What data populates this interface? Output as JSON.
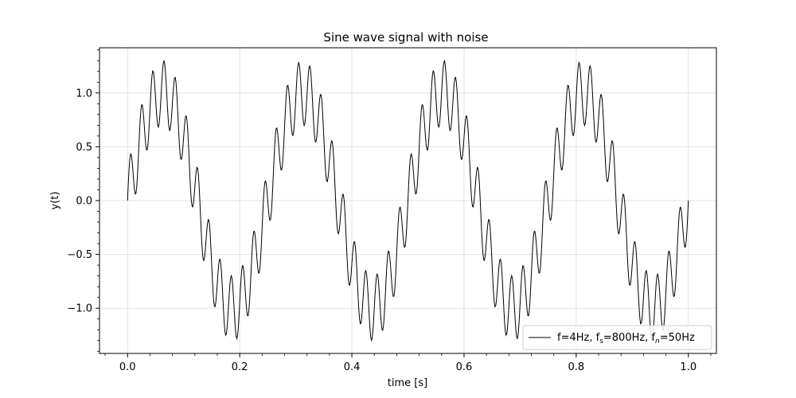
{
  "chart_data": {
    "type": "line",
    "title": "Sine wave signal with noise",
    "xlabel": "time [s]",
    "ylabel": "y(t)",
    "xlim": [
      -0.05,
      1.05
    ],
    "ylim": [
      -1.42,
      1.42
    ],
    "xticks": [
      0.0,
      0.2,
      0.4,
      0.6,
      0.8,
      1.0
    ],
    "xtick_labels": [
      "0.0",
      "0.2",
      "0.4",
      "0.6",
      "0.8",
      "1.0"
    ],
    "yticks": [
      -1.0,
      -0.5,
      0.0,
      0.5,
      1.0
    ],
    "ytick_labels": [
      "−1.0",
      "−0.5",
      "0.0",
      "0.5",
      "1.0"
    ],
    "grid": true,
    "legend": "lower-right",
    "series": [
      {
        "name": "f=4Hz, fs=800Hz, fn=50Hz",
        "legend_parts": {
          "f": "f=4Hz, f",
          "s_sub": "s",
          "fs": "=800Hz, f",
          "n_sub": "n",
          "fn": "=50Hz"
        },
        "color": "#000000",
        "function": "sin(2*pi*4*t) + 0.3*sin(2*pi*50*t)",
        "t_range": [
          0,
          1
        ],
        "samples": 801
      }
    ]
  }
}
